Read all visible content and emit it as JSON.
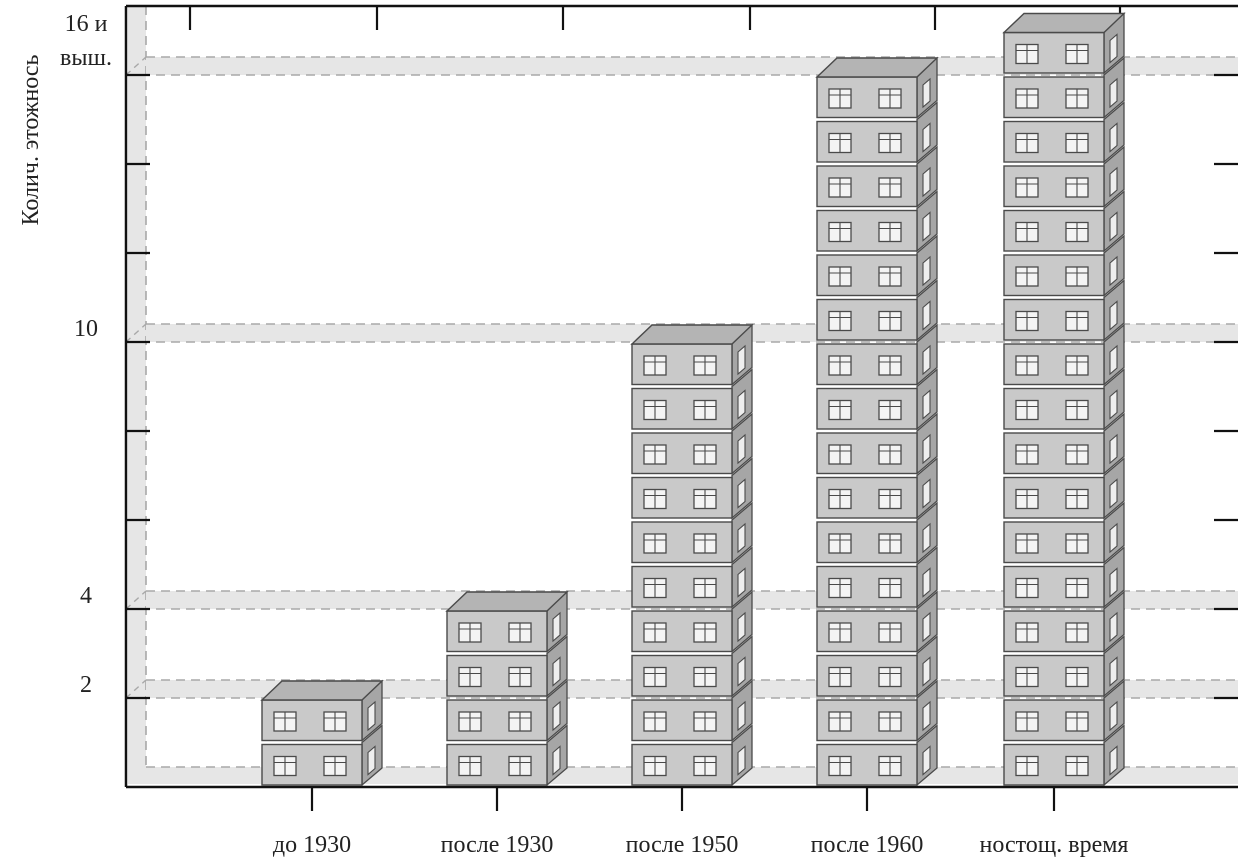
{
  "chart_data": {
    "type": "bar",
    "title": "",
    "xlabel": "",
    "ylabel": "Колич. этожнось",
    "categories": [
      "до 1930",
      "после 1930",
      "после 1950",
      "после 1960",
      "ностощ. время"
    ],
    "values": [
      2,
      4,
      10,
      16,
      17
    ],
    "ylim": [
      0,
      17.5
    ],
    "y_tick_labels": [
      {
        "value": 2,
        "lines": [
          "2"
        ]
      },
      {
        "value": 4,
        "lines": [
          "4"
        ]
      },
      {
        "value": 10,
        "lines": [
          "10"
        ]
      },
      {
        "value": 16,
        "lines": [
          "16 и",
          "выш."
        ]
      }
    ],
    "reference_lines": [
      2,
      4,
      10,
      16
    ],
    "grid": "dashed horizontal reference bands",
    "mark_style": "stacked building floors with windows",
    "colors": {
      "floor_front": "#c9c9c9",
      "floor_top": "#b4b4b4",
      "floor_side": "#a6a6a6",
      "floor_stroke": "#4a4a4a",
      "band_fill": "#e6e6e6",
      "band_dash": "#a8a8a8",
      "axis": "#111111"
    }
  }
}
